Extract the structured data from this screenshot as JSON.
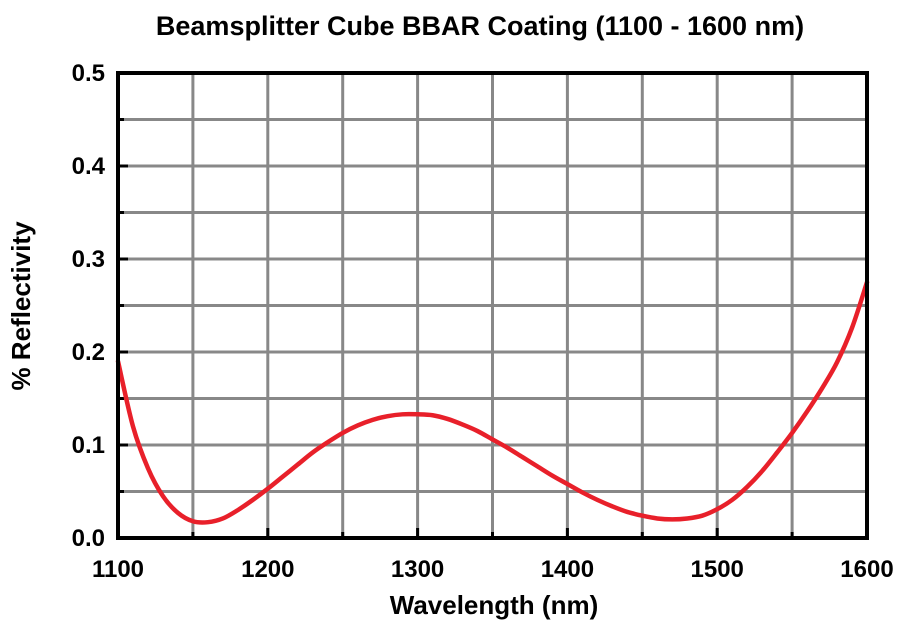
{
  "chart_data": {
    "type": "line",
    "title": "Beamsplitter Cube BBAR Coating (1100 - 1600 nm)",
    "xlabel": "Wavelength (nm)",
    "ylabel": "% Reflectivity",
    "xlim": [
      1100,
      1600
    ],
    "ylim": [
      0,
      0.5
    ],
    "x_ticks": [
      "1100",
      "1200",
      "1300",
      "1400",
      "1500",
      "1600"
    ],
    "y_ticks": [
      "0.0",
      "0.1",
      "0.2",
      "0.3",
      "0.4",
      "0.5"
    ],
    "grid": true,
    "line_color": "#e8202a",
    "series": [
      {
        "x": [
          1100,
          1110,
          1120,
          1130,
          1140,
          1150,
          1160,
          1170,
          1180,
          1190,
          1200,
          1210,
          1220,
          1230,
          1240,
          1250,
          1260,
          1270,
          1280,
          1290,
          1300,
          1310,
          1320,
          1330,
          1340,
          1350,
          1360,
          1370,
          1380,
          1390,
          1400,
          1410,
          1420,
          1430,
          1440,
          1450,
          1460,
          1470,
          1480,
          1490,
          1500,
          1510,
          1520,
          1530,
          1540,
          1550,
          1560,
          1570,
          1580,
          1590,
          1600
        ],
        "values": [
          0.19,
          0.12,
          0.075,
          0.045,
          0.027,
          0.018,
          0.017,
          0.021,
          0.03,
          0.041,
          0.053,
          0.066,
          0.079,
          0.092,
          0.103,
          0.113,
          0.121,
          0.127,
          0.131,
          0.133,
          0.133,
          0.132,
          0.128,
          0.122,
          0.115,
          0.106,
          0.097,
          0.087,
          0.077,
          0.067,
          0.058,
          0.049,
          0.041,
          0.034,
          0.028,
          0.024,
          0.021,
          0.02,
          0.021,
          0.024,
          0.031,
          0.041,
          0.055,
          0.072,
          0.092,
          0.113,
          0.136,
          0.161,
          0.189,
          0.226,
          0.275
        ]
      }
    ]
  }
}
